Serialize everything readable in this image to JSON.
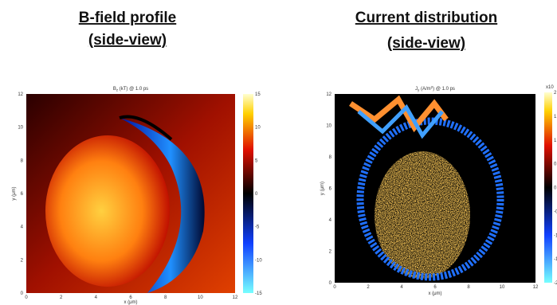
{
  "panels": [
    {
      "heading": [
        "B-field profile",
        "(side-view)"
      ],
      "plot_title": {
        "symbol": "B",
        "sub": "z",
        "rest": " (kT) @ 1.0 ps"
      },
      "x_label": "x (μm)",
      "y_label": "y (μm)",
      "x_ticks": [
        0,
        2,
        4,
        6,
        8,
        10,
        12
      ],
      "y_ticks": [
        0,
        2,
        4,
        6,
        8,
        10,
        12
      ],
      "colorbar_ticks": [
        15,
        10,
        5,
        0,
        -5,
        -10,
        -15
      ]
    },
    {
      "heading": [
        "Current distribution",
        "(side-view)"
      ],
      "plot_title": {
        "symbol": "J",
        "sub": "y",
        "rest": " (A/m",
        "sup": "2",
        "rest2": ") @ 1.0 ps"
      },
      "x_label": "x (μm)",
      "y_label": "y (μm)",
      "x_ticks": [
        0,
        2,
        4,
        6,
        8,
        10,
        12
      ],
      "y_ticks": [
        0,
        2,
        4,
        6,
        8,
        10,
        12
      ],
      "colorbar_ticks": [
        2,
        1.5,
        1,
        0.5,
        0,
        -0.5,
        -1,
        -1.5,
        -2
      ],
      "colorbar_exponent": "x10"
    }
  ]
}
